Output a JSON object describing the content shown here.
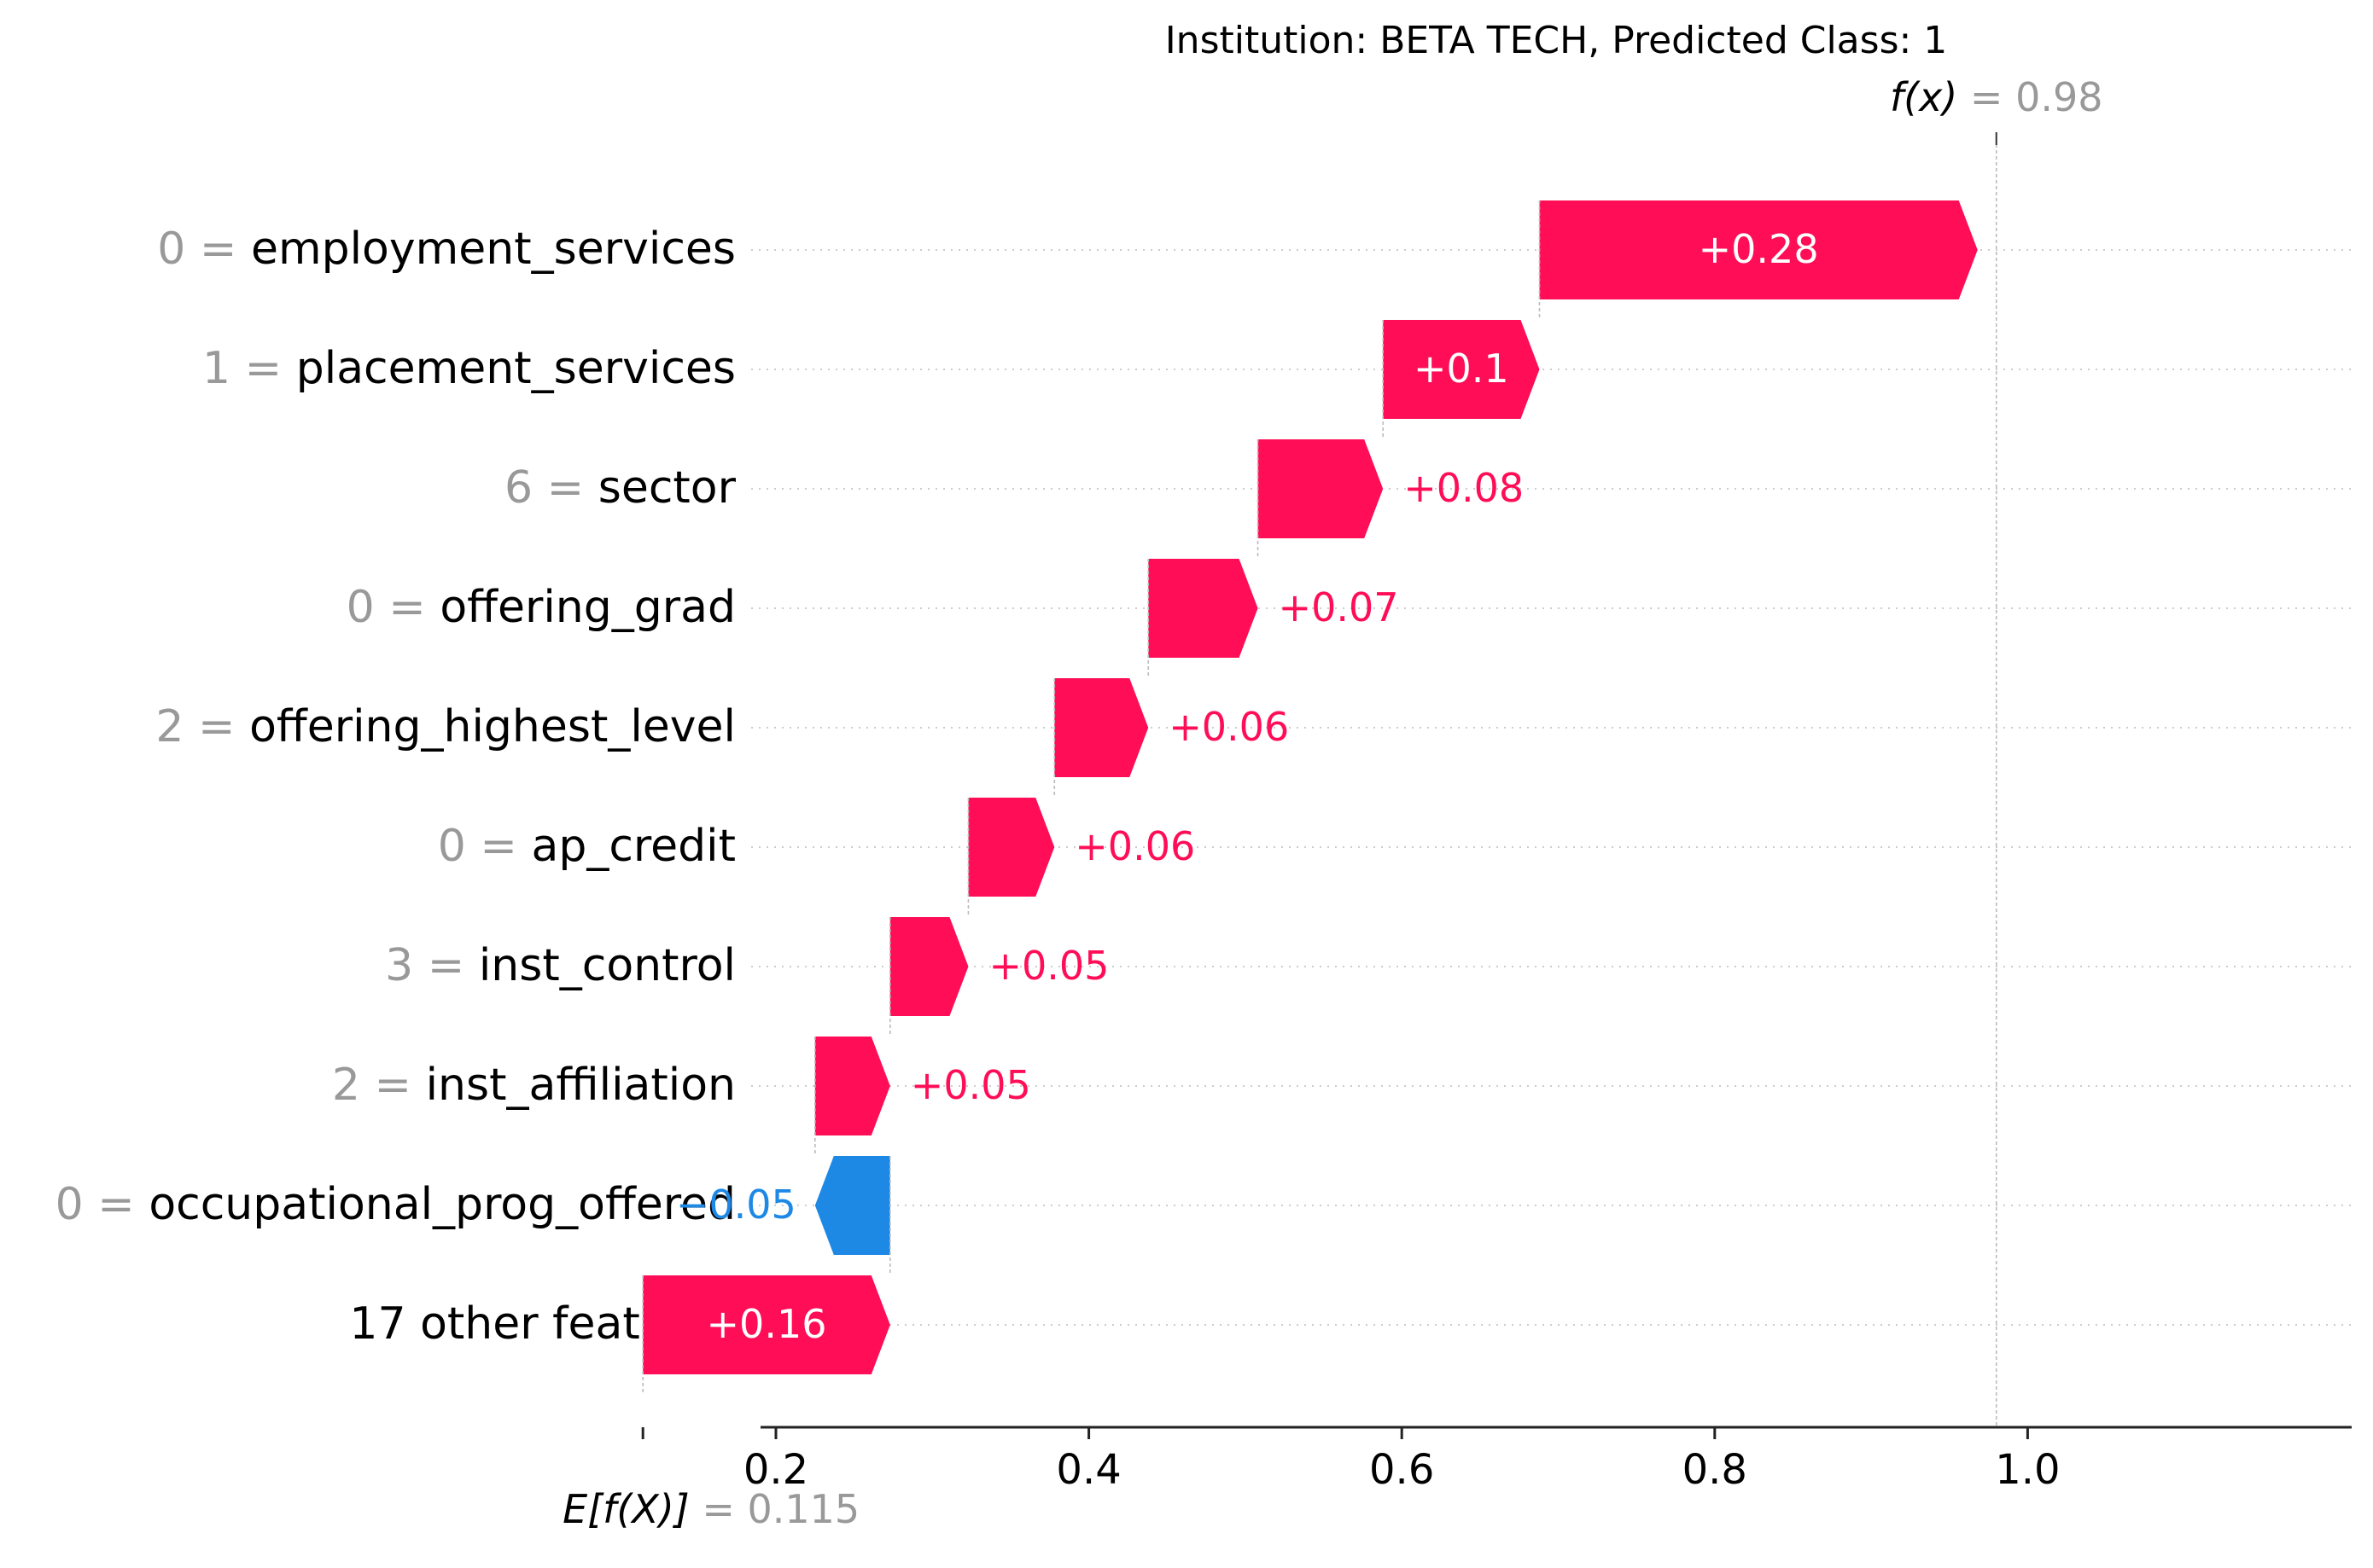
{
  "chart_data": {
    "type": "waterfall",
    "title": "Institution: BETA TECH, Predicted Class: 1",
    "base_value": 0.115,
    "base_label": "E[f(X)]",
    "base_value_label": "= 0.115",
    "output_value": 0.98,
    "output_label": "f(x)",
    "output_value_label": "= 0.98",
    "xlim": [
      0.1,
      1.13
    ],
    "x_ticks": [
      0.2,
      0.4,
      0.6,
      0.8,
      1.0
    ],
    "x_tick_labels": [
      "0.2",
      "0.4",
      "0.6",
      "0.8",
      "1.0"
    ],
    "colors": {
      "positive": "#ff0d57",
      "negative": "#1e88e5",
      "value_gray": "#999999",
      "text": "#000000"
    },
    "features": [
      {
        "value": "0",
        "name": "employment_services",
        "contribution": 0.28,
        "label": "+0.28"
      },
      {
        "value": "1",
        "name": "placement_services",
        "contribution": 0.1,
        "label": "+0.1"
      },
      {
        "value": "6",
        "name": "sector",
        "contribution": 0.08,
        "label": "+0.08"
      },
      {
        "value": "0",
        "name": "offering_grad",
        "contribution": 0.07,
        "label": "+0.07"
      },
      {
        "value": "2",
        "name": "offering_highest_level",
        "contribution": 0.06,
        "label": "+0.06"
      },
      {
        "value": "0",
        "name": "ap_credit",
        "contribution": 0.055,
        "label": "+0.06"
      },
      {
        "value": "3",
        "name": "inst_control",
        "contribution": 0.05,
        "label": "+0.05"
      },
      {
        "value": "2",
        "name": "inst_affiliation",
        "contribution": 0.048,
        "label": "+0.05"
      },
      {
        "value": "0",
        "name": "occupational_prog_offered",
        "contribution": -0.048,
        "label": "−0.05"
      },
      {
        "value": "",
        "name": "17 other features",
        "contribution": 0.158,
        "label": "+0.16"
      }
    ]
  }
}
